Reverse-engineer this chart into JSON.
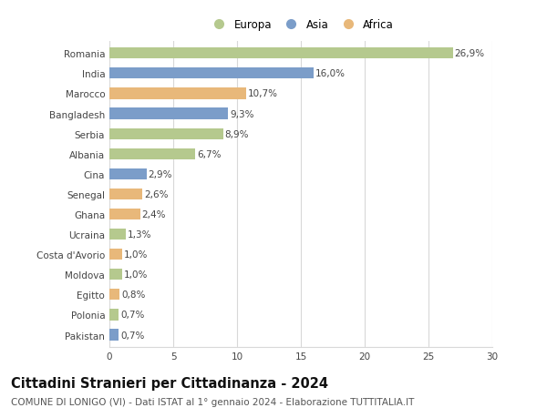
{
  "countries": [
    "Romania",
    "India",
    "Marocco",
    "Bangladesh",
    "Serbia",
    "Albania",
    "Cina",
    "Senegal",
    "Ghana",
    "Ucraina",
    "Costa d'Avorio",
    "Moldova",
    "Egitto",
    "Polonia",
    "Pakistan"
  ],
  "values": [
    26.9,
    16.0,
    10.7,
    9.3,
    8.9,
    6.7,
    2.9,
    2.6,
    2.4,
    1.3,
    1.0,
    1.0,
    0.8,
    0.7,
    0.7
  ],
  "labels": [
    "26,9%",
    "16,0%",
    "10,7%",
    "9,3%",
    "8,9%",
    "6,7%",
    "2,9%",
    "2,6%",
    "2,4%",
    "1,3%",
    "1,0%",
    "1,0%",
    "0,8%",
    "0,7%",
    "0,7%"
  ],
  "continents": [
    "Europa",
    "Asia",
    "Africa",
    "Asia",
    "Europa",
    "Europa",
    "Asia",
    "Africa",
    "Africa",
    "Europa",
    "Africa",
    "Europa",
    "Africa",
    "Europa",
    "Asia"
  ],
  "colors": {
    "Europa": "#b5c98e",
    "Asia": "#7b9dc9",
    "Africa": "#e8b87a"
  },
  "legend_entries": [
    "Europa",
    "Asia",
    "Africa"
  ],
  "title": "Cittadini Stranieri per Cittadinanza - 2024",
  "subtitle": "COMUNE DI LONIGO (VI) - Dati ISTAT al 1° gennaio 2024 - Elaborazione TUTTITALIA.IT",
  "xlim": [
    0,
    30
  ],
  "xticks": [
    0,
    5,
    10,
    15,
    20,
    25,
    30
  ],
  "background_color": "#ffffff",
  "grid_color": "#d8d8d8",
  "bar_height": 0.55,
  "title_fontsize": 10.5,
  "subtitle_fontsize": 7.5,
  "label_fontsize": 7.5,
  "tick_fontsize": 7.5,
  "legend_fontsize": 8.5
}
